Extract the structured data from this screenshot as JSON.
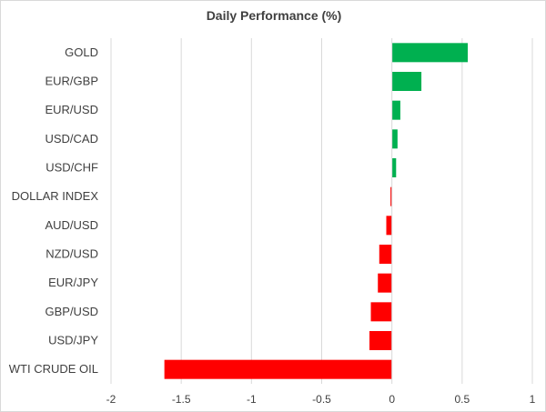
{
  "chart_data": {
    "type": "bar",
    "orientation": "horizontal",
    "title": "Daily Performance (%)",
    "xlabel": "",
    "ylabel": "",
    "xlim": [
      -2,
      1
    ],
    "x_ticks": [
      "-2",
      "-1.5",
      "-1",
      "-0.5",
      "0",
      "0.5",
      "1"
    ],
    "x_tick_values": [
      -2,
      -1.5,
      -1,
      -0.5,
      0,
      0.5,
      1
    ],
    "grid": "vertical",
    "legend": "none",
    "categories": [
      "GOLD",
      "EUR/GBP",
      "EUR/USD",
      "USD/CAD",
      "USD/CHF",
      "DOLLAR INDEX",
      "AUD/USD",
      "NZD/USD",
      "EUR/JPY",
      "GBP/USD",
      "USD/JPY",
      "WTI CRUDE OIL"
    ],
    "values": [
      0.54,
      0.21,
      0.06,
      0.04,
      0.03,
      -0.01,
      -0.04,
      -0.09,
      -0.1,
      -0.15,
      -0.16,
      -1.62
    ],
    "colors": {
      "positive": "#00b050",
      "negative": "#ff0000",
      "grid": "#d9d9d9",
      "text": "#404040"
    }
  }
}
